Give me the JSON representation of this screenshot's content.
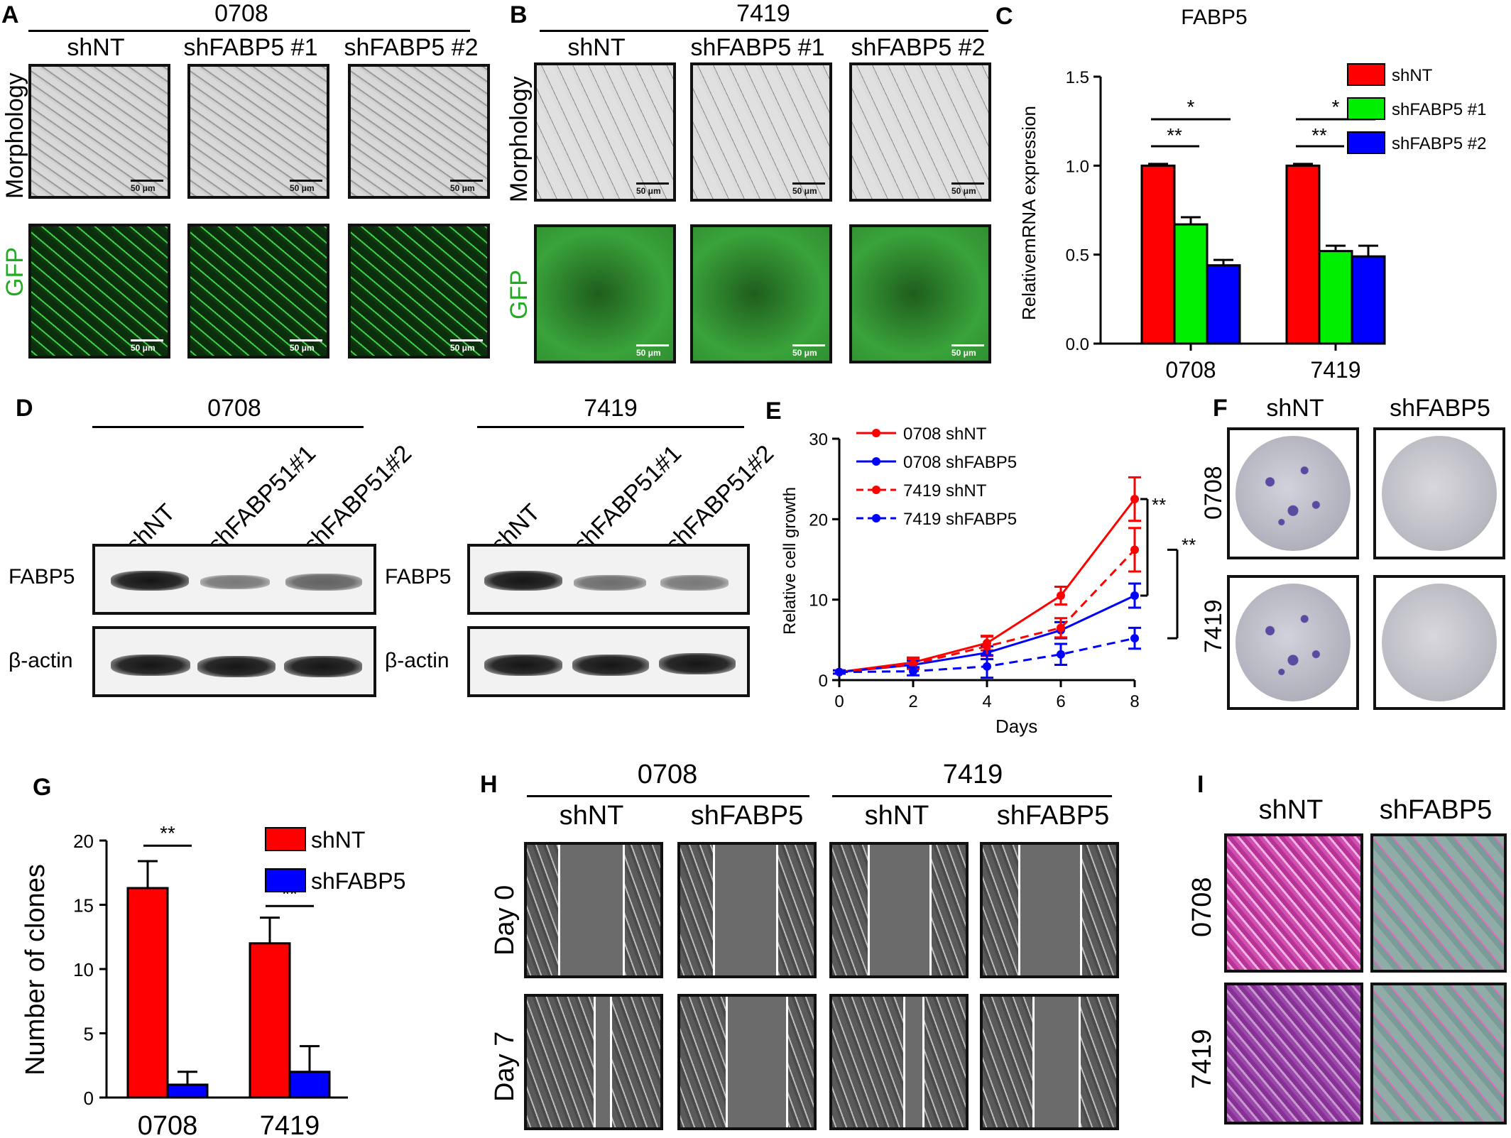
{
  "panels": {
    "A": {
      "letter": "A",
      "group": "0708",
      "cols": [
        "shNT",
        "shFABP5 #1",
        "shFABP5 #2"
      ],
      "rows": [
        "Morphology",
        "GFP"
      ],
      "scale": "50 μm"
    },
    "B": {
      "letter": "B",
      "group": "7419",
      "cols": [
        "shNT",
        "shFABP5 #1",
        "shFABP5 #2"
      ],
      "rows": [
        "Morphology",
        "GFP"
      ],
      "scale": "50 μm"
    },
    "D": {
      "letter": "D",
      "groups": [
        "0708",
        "7419"
      ],
      "lanes": [
        "shNT",
        "shFABP51#1",
        "shFABP51#2"
      ],
      "rows": [
        "FABP5",
        "β-actin"
      ]
    },
    "F": {
      "letter": "F",
      "cols": [
        "shNT",
        "shFABP5"
      ],
      "rows": [
        "0708",
        "7419"
      ]
    },
    "H": {
      "letter": "H",
      "groups": [
        "0708",
        "7419"
      ],
      "cols": [
        "shNT",
        "shFABP5",
        "shNT",
        "shFABP5"
      ],
      "rows": [
        "Day 0",
        "Day 7"
      ]
    },
    "I": {
      "letter": "I",
      "cols": [
        "shNT",
        "shFABP5"
      ],
      "rows": [
        "0708",
        "7419"
      ]
    }
  },
  "colors": {
    "shNT": "#ff0000",
    "shFABP5_1": "#00ee00",
    "shFABP5_2": "#0000ff",
    "shFABP5": "#0000ff"
  },
  "chart_data": [
    {
      "panel": "C",
      "type": "bar",
      "title": "FABP5",
      "ylabel": "RelativemRNA expression",
      "xlabel": "",
      "categories": [
        "0708",
        "7419"
      ],
      "ylim": [
        0,
        1.5
      ],
      "yticks": [
        "0.0",
        "0.5",
        "1.0",
        "1.5"
      ],
      "legend": "top-right",
      "series": [
        {
          "name": "shNT",
          "values": [
            1.0,
            1.0
          ],
          "errors": [
            0.01,
            0.01
          ]
        },
        {
          "name": "shFABP5 #1",
          "values": [
            0.67,
            0.52
          ],
          "errors": [
            0.04,
            0.03
          ]
        },
        {
          "name": "shFABP5 #2",
          "values": [
            0.44,
            0.49
          ],
          "errors": [
            0.03,
            0.06
          ]
        }
      ],
      "significance": [
        "**",
        "*",
        "**",
        "*"
      ]
    },
    {
      "panel": "E",
      "type": "line",
      "title": "",
      "xlabel": "Days",
      "ylabel": "Relative cell growth",
      "x": [
        0,
        2,
        4,
        6,
        8
      ],
      "xticks": [
        "0",
        "2",
        "4",
        "6",
        "8"
      ],
      "ylim": [
        0,
        30
      ],
      "yticks": [
        "0",
        "10",
        "20",
        "30"
      ],
      "legend": "top-left",
      "series": [
        {
          "name": "0708 shNT",
          "values": [
            1.0,
            2.2,
            4.6,
            10.5,
            22.5
          ],
          "errors": [
            0.2,
            0.6,
            0.9,
            1.1,
            2.7
          ],
          "style": "solid",
          "color": "#ff0000"
        },
        {
          "name": "0708 shFABP5",
          "values": [
            1.0,
            1.9,
            3.4,
            6.2,
            10.5
          ],
          "errors": [
            0.2,
            0.5,
            0.8,
            1.0,
            1.5
          ],
          "style": "solid",
          "color": "#0000ff"
        },
        {
          "name": "7419 shNT",
          "values": [
            1.0,
            2.0,
            4.2,
            6.5,
            16.2
          ],
          "errors": [
            0.2,
            0.6,
            1.2,
            1.2,
            2.7
          ],
          "style": "dashed",
          "color": "#ff0000"
        },
        {
          "name": "7419 shFABP5",
          "values": [
            1.0,
            1.1,
            1.7,
            3.2,
            5.2
          ],
          "errors": [
            0.2,
            0.5,
            1.4,
            1.3,
            1.3
          ],
          "style": "dashed",
          "color": "#0000ff"
        }
      ],
      "significance": [
        "**",
        "**"
      ]
    },
    {
      "panel": "G",
      "type": "bar",
      "title": "",
      "ylabel": "Number of clones",
      "xlabel": "",
      "categories": [
        "0708",
        "7419"
      ],
      "ylim": [
        0,
        20
      ],
      "yticks": [
        "0",
        "5",
        "10",
        "15",
        "20"
      ],
      "legend": "top-right",
      "series": [
        {
          "name": "shNT",
          "values": [
            16.3,
            12.0
          ],
          "errors": [
            2.1,
            2.0
          ]
        },
        {
          "name": "shFABP5",
          "values": [
            1.0,
            2.0
          ],
          "errors": [
            1.0,
            2.0
          ]
        }
      ],
      "significance": [
        "**",
        "**"
      ]
    }
  ]
}
